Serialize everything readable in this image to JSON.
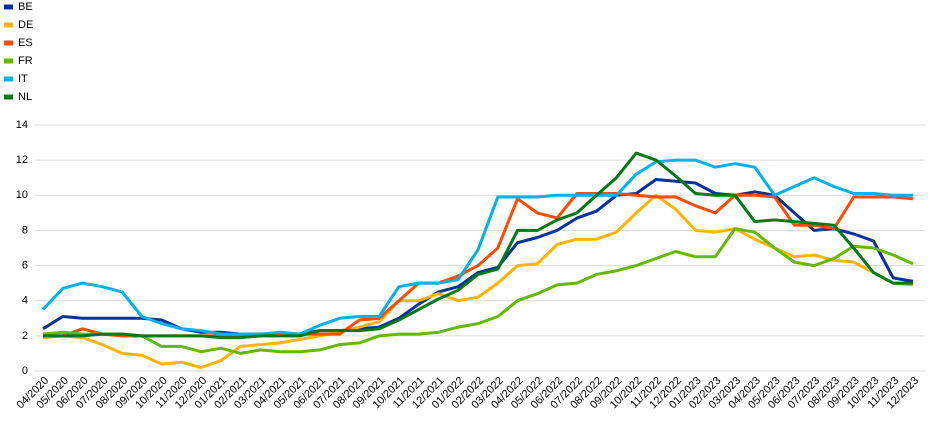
{
  "chart_data": {
    "type": "line",
    "categories": [
      "04/2020",
      "05/2020",
      "06/2020",
      "07/2020",
      "08/2020",
      "09/2020",
      "10/2020",
      "11/2020",
      "12/2020",
      "01/2021",
      "02/2021",
      "03/2021",
      "04/2021",
      "05/2021",
      "06/2021",
      "07/2021",
      "08/2021",
      "09/2021",
      "10/2021",
      "11/2021",
      "12/2021",
      "01/2022",
      "02/2022",
      "03/2022",
      "04/2022",
      "05/2022",
      "06/2022",
      "07/2022",
      "08/2022",
      "09/2022",
      "10/2022",
      "11/2022",
      "12/2022",
      "01/2023",
      "02/2023",
      "03/2023",
      "04/2023",
      "05/2023",
      "06/2023",
      "07/2023",
      "08/2023",
      "09/2023",
      "10/2023",
      "11/2023",
      "12/2023"
    ],
    "series": [
      {
        "name": "BE",
        "color": "#003299",
        "values": [
          2.4,
          3.1,
          3.0,
          3.0,
          3.0,
          3.0,
          2.9,
          2.4,
          2.2,
          2.2,
          2.1,
          2.1,
          2.1,
          2.1,
          2.3,
          2.3,
          2.4,
          2.5,
          3.0,
          3.8,
          4.5,
          4.8,
          5.6,
          5.9,
          7.3,
          7.6,
          8.0,
          8.7,
          9.1,
          10.0,
          10.1,
          10.9,
          10.8,
          10.7,
          10.1,
          10.0,
          10.2,
          10.0,
          9.0,
          8.0,
          8.1,
          7.8,
          7.4,
          5.3,
          5.1
        ]
      },
      {
        "name": "DE",
        "color": "#ffb400",
        "values": [
          1.9,
          2.0,
          1.9,
          1.5,
          1.0,
          0.9,
          0.4,
          0.5,
          0.2,
          0.6,
          1.4,
          1.5,
          1.6,
          1.8,
          2.0,
          2.2,
          2.5,
          2.8,
          4.0,
          4.0,
          4.4,
          4.0,
          4.2,
          5.0,
          6.0,
          6.1,
          7.2,
          7.5,
          7.5,
          7.9,
          9.0,
          10.0,
          9.2,
          8.0,
          7.9,
          8.1,
          7.5,
          7.0,
          6.5,
          6.6,
          6.3,
          6.2,
          5.6,
          5.0,
          4.9
        ]
      },
      {
        "name": "ES",
        "color": "#ff4b00",
        "values": [
          2.0,
          2.0,
          2.4,
          2.1,
          2.0,
          2.0,
          2.0,
          2.0,
          2.0,
          2.0,
          2.0,
          2.0,
          2.1,
          2.1,
          2.1,
          2.1,
          2.9,
          3.0,
          4.0,
          5.0,
          5.0,
          5.4,
          6.0,
          7.0,
          9.8,
          9.0,
          8.7,
          10.1,
          10.1,
          10.1,
          10.0,
          9.9,
          9.9,
          9.4,
          9.0,
          10.0,
          10.0,
          9.9,
          8.3,
          8.3,
          8.1,
          9.9,
          9.9,
          9.9,
          9.8
        ]
      },
      {
        "name": "FR",
        "color": "#65b800",
        "values": [
          2.1,
          2.2,
          2.1,
          2.1,
          2.1,
          2.0,
          1.4,
          1.4,
          1.1,
          1.3,
          1.0,
          1.2,
          1.1,
          1.1,
          1.2,
          1.5,
          1.6,
          2.0,
          2.1,
          2.1,
          2.2,
          2.5,
          2.7,
          3.1,
          4.0,
          4.4,
          4.9,
          5.0,
          5.5,
          5.7,
          6.0,
          6.4,
          6.8,
          6.5,
          6.5,
          8.1,
          7.9,
          7.0,
          6.2,
          6.0,
          6.4,
          7.1,
          7.0,
          6.6,
          6.1
        ]
      },
      {
        "name": "IT",
        "color": "#00b1ea",
        "values": [
          3.5,
          4.7,
          5.0,
          4.8,
          4.5,
          3.1,
          2.7,
          2.4,
          2.3,
          2.1,
          2.1,
          2.1,
          2.2,
          2.1,
          2.6,
          3.0,
          3.1,
          3.1,
          4.8,
          5.0,
          5.0,
          5.2,
          6.9,
          9.9,
          9.9,
          9.9,
          10.0,
          10.0,
          10.0,
          10.0,
          11.2,
          11.9,
          12.0,
          12.0,
          11.6,
          11.8,
          11.6,
          10.0,
          10.5,
          11.0,
          10.5,
          10.1,
          10.1,
          10.0,
          10.0
        ]
      },
      {
        "name": "NL",
        "color": "#007816",
        "values": [
          2.0,
          2.0,
          2.0,
          2.1,
          2.1,
          2.0,
          2.0,
          2.0,
          2.0,
          1.9,
          1.9,
          2.0,
          2.0,
          2.0,
          2.3,
          2.3,
          2.3,
          2.4,
          2.9,
          3.5,
          4.1,
          4.6,
          5.5,
          5.8,
          8.0,
          8.0,
          8.6,
          9.0,
          10.0,
          11.0,
          12.4,
          12.0,
          11.1,
          10.1,
          10.0,
          10.0,
          8.5,
          8.6,
          8.5,
          8.4,
          8.3,
          7.0,
          5.6,
          5.0,
          5.0
        ]
      }
    ],
    "ylim": [
      0,
      14
    ],
    "yticks": [
      0,
      2,
      4,
      6,
      8,
      10,
      12,
      14
    ],
    "grid": true,
    "legend": "top-left"
  }
}
